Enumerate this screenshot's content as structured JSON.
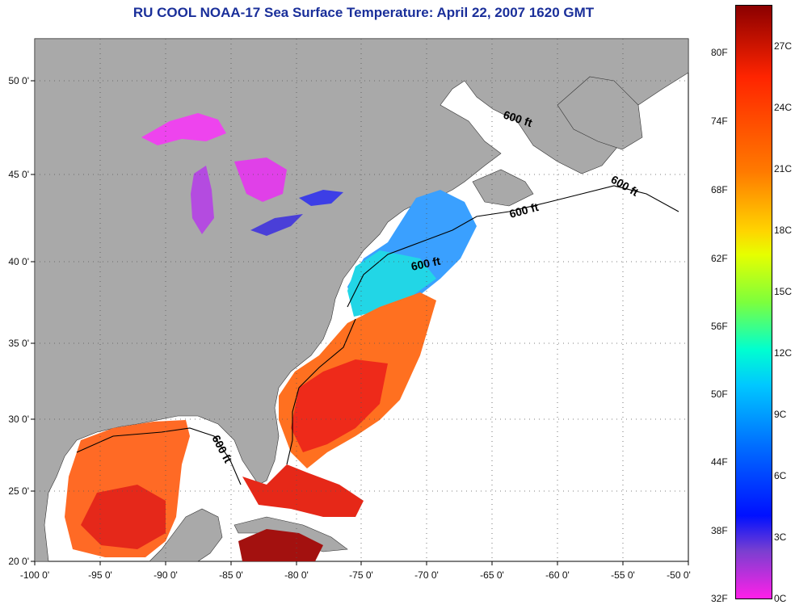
{
  "title": "RU COOL  NOAA-17  Sea Surface Temperature:  April 22, 2007 1620 GMT",
  "map": {
    "lon_ticks": [
      "-100 0'",
      "-95 0'",
      "-90 0'",
      "-85 0'",
      "-80 0'",
      "-75 0'",
      "-70 0'",
      "-65 0'",
      "-60 0'",
      "-55 0'",
      "-50 0'"
    ],
    "lat_ticks": [
      "50 0'",
      "45 0'",
      "40 0'",
      "35 0'",
      "30 0'",
      "25 0'",
      "20 0'"
    ],
    "contour_label": "600 ft",
    "colors": {
      "land": "#a9a9a9",
      "no_data": "#ffffff"
    }
  },
  "colorbar": {
    "fahrenheit": [
      "80F",
      "74F",
      "68F",
      "62F",
      "56F",
      "50F",
      "44F",
      "38F",
      "32F"
    ],
    "celsius": [
      "27C",
      "24C",
      "21C",
      "18C",
      "15C",
      "12C",
      "9C",
      "6C",
      "3C",
      "0C"
    ]
  }
}
